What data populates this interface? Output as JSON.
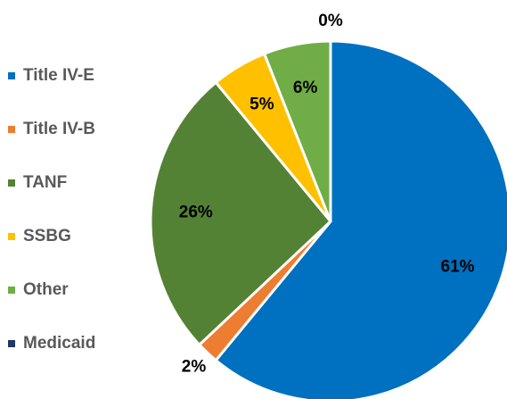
{
  "chart_data": {
    "type": "pie",
    "categories": [
      "Title IV-E",
      "Title IV-B",
      "TANF",
      "SSBG",
      "Other",
      "Medicaid"
    ],
    "values": [
      61,
      2,
      26,
      5,
      6,
      0
    ],
    "value_labels": [
      "61%",
      "2%",
      "26%",
      "5%",
      "6%",
      "0%"
    ],
    "colors": [
      "#0070c0",
      "#ed7d31",
      "#548235",
      "#ffc000",
      "#70ad47",
      "#1f3864"
    ],
    "legend": "left"
  }
}
